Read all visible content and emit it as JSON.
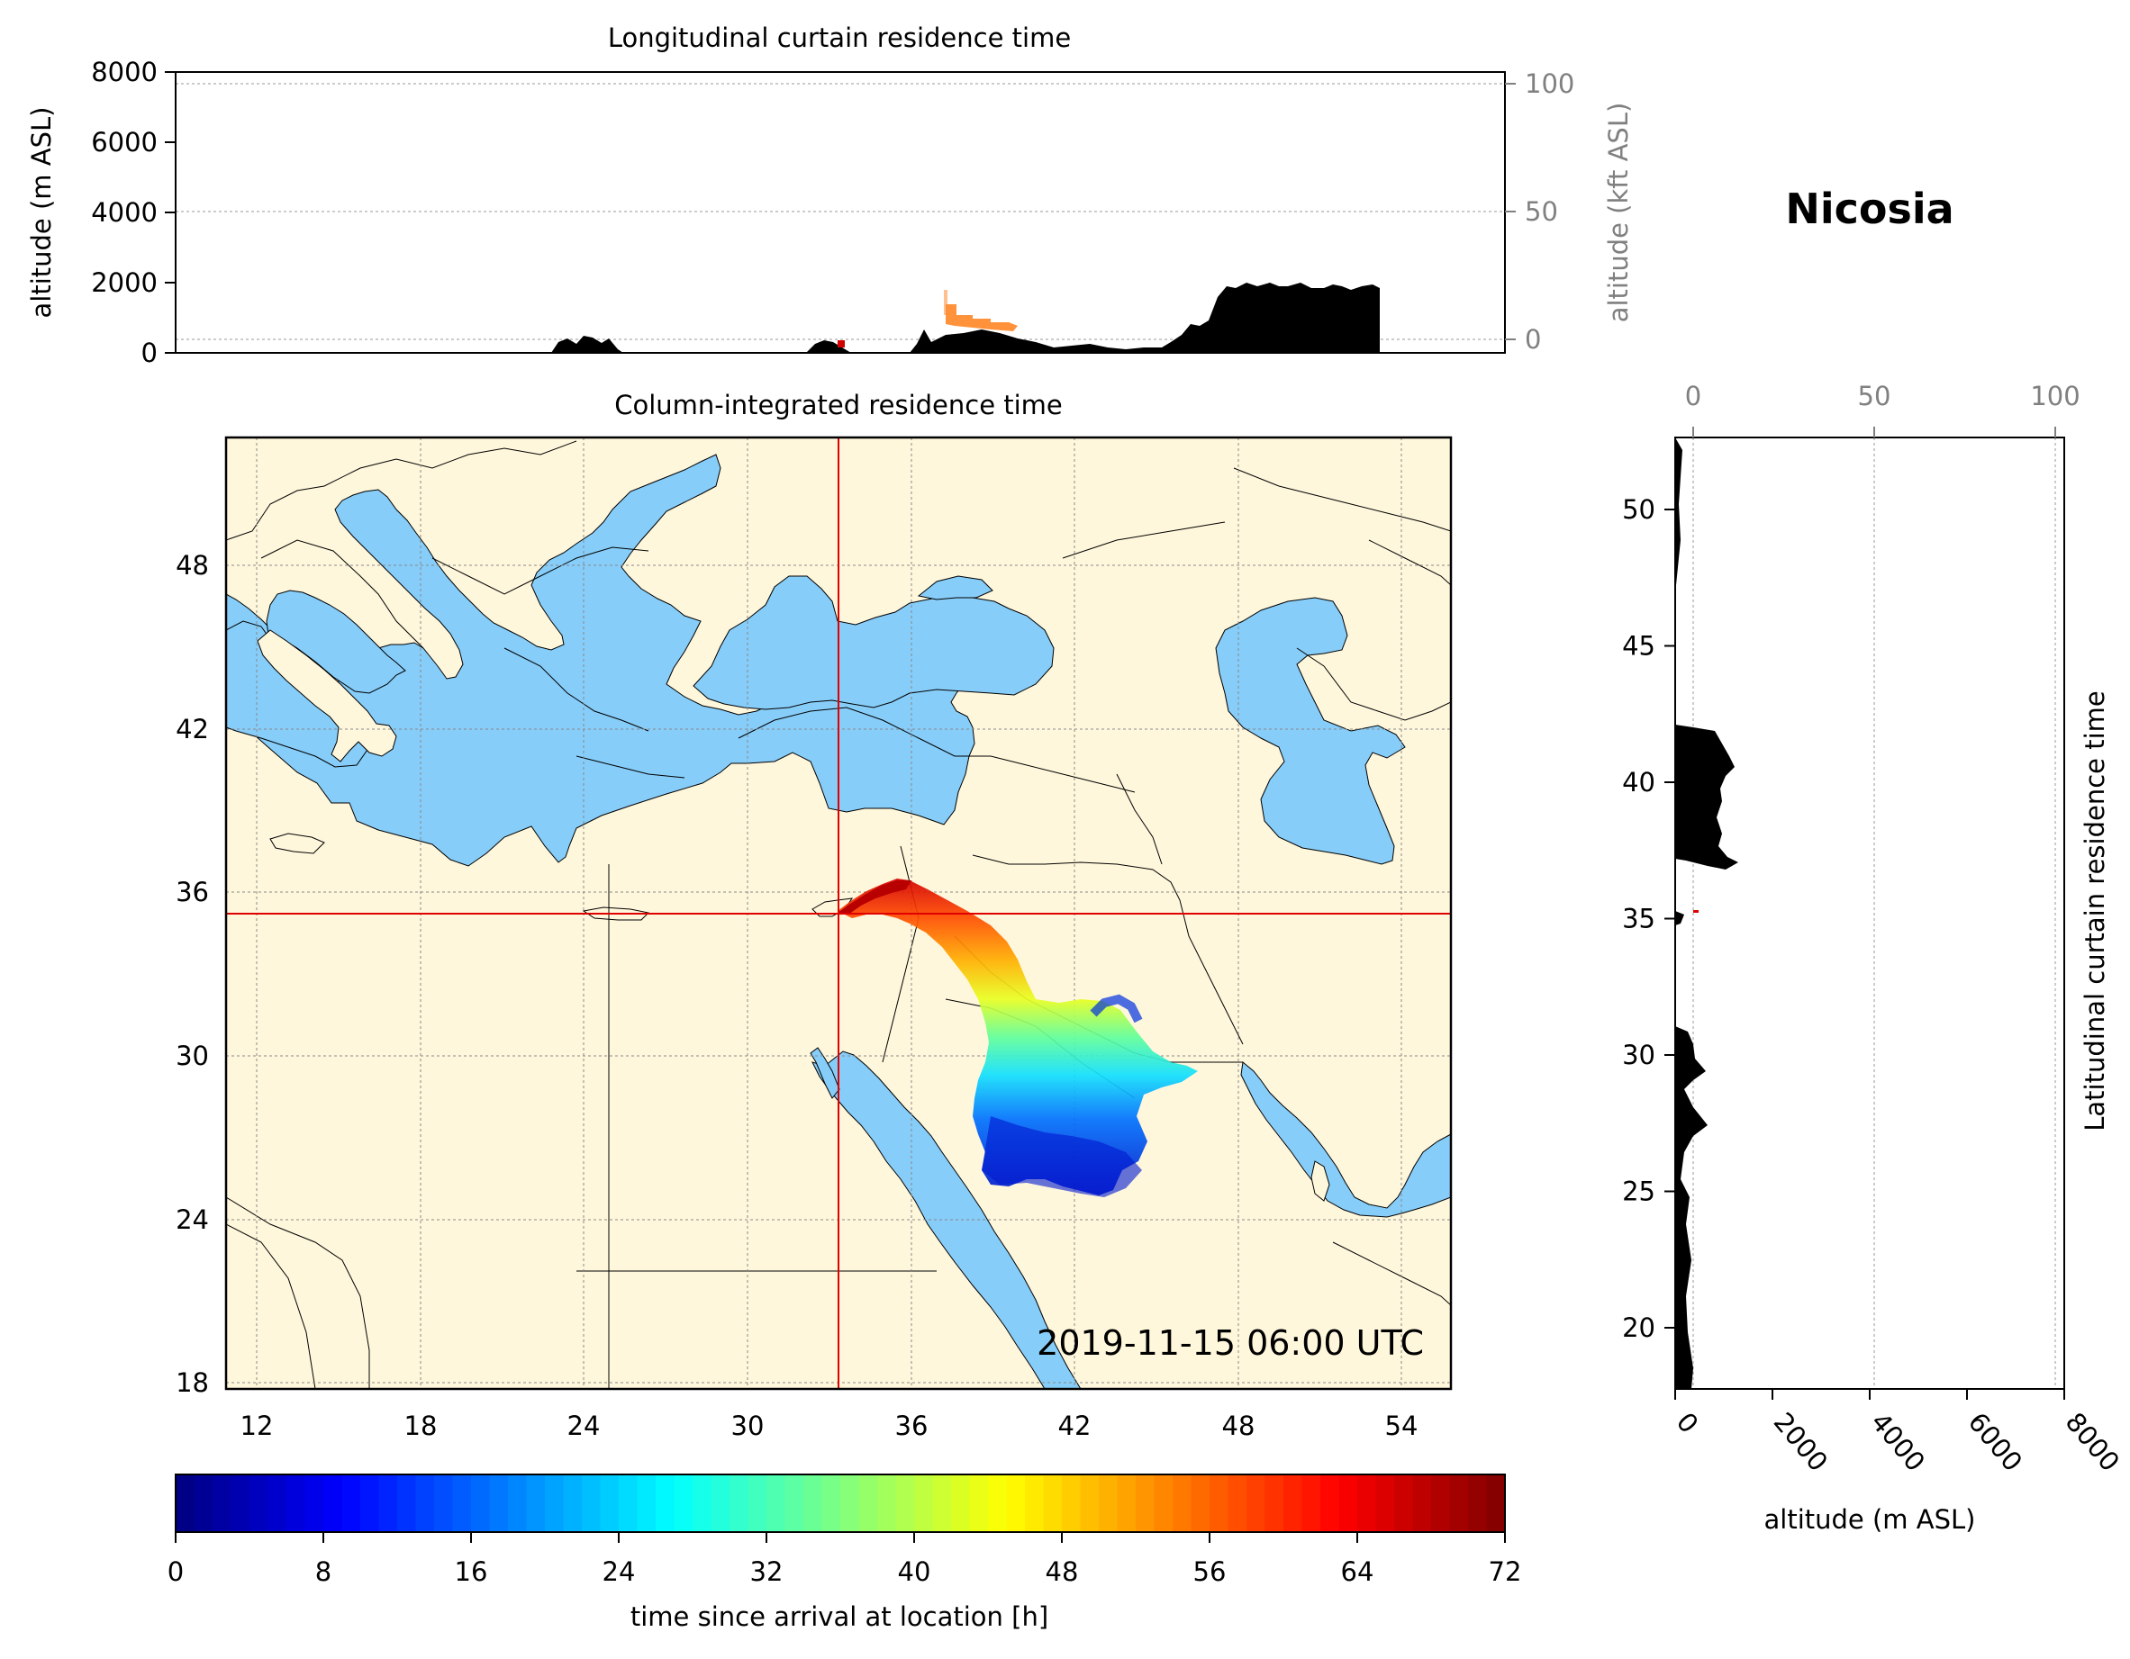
{
  "station": {
    "name": "Nicosia"
  },
  "timestamp": "2019-11-15 06:00 UTC",
  "colors": {
    "land": "#fff7dc",
    "water": "#87cdf9",
    "crosshair": "#e00000",
    "terrain": "#000000"
  },
  "longitudinal_panel": {
    "title": "Longitudinal curtain residence time",
    "ylabel_left": "altitude (m ASL)",
    "ylabel_right": "altitude (kft ASL)",
    "left_ticks": [
      "0",
      "2000",
      "4000",
      "6000",
      "8000"
    ],
    "right_ticks": [
      "0",
      "50",
      "100"
    ]
  },
  "map_panel": {
    "title": "Column-integrated residence time",
    "lon_ticks": [
      "12",
      "18",
      "24",
      "30",
      "36",
      "42",
      "48",
      "54"
    ],
    "lat_ticks": [
      "18",
      "24",
      "30",
      "36",
      "42",
      "48"
    ]
  },
  "latitudinal_panel": {
    "ylabel": "Latitudinal curtain residence time",
    "xlabel": "altitude (m ASL)",
    "top_ticks": [
      "0",
      "50",
      "100"
    ],
    "bottom_ticks": [
      "0",
      "2000",
      "4000",
      "6000",
      "8000"
    ],
    "lat_ticks": [
      "20",
      "25",
      "30",
      "35",
      "40",
      "45",
      "50"
    ]
  },
  "colorbar": {
    "label": "time since arrival at location [h]",
    "ticks": [
      "0",
      "8",
      "16",
      "24",
      "32",
      "40",
      "48",
      "56",
      "64",
      "72"
    ]
  },
  "chart_data": {
    "type": "heatmap",
    "station_lon": 33.4,
    "station_lat": 35.2,
    "map_extent": {
      "lon": [
        10.9,
        55.9
      ],
      "lat": [
        17.9,
        52.7
      ]
    },
    "colorbar_range": [
      0,
      72
    ],
    "longitudinal_altitude_range": [
      0,
      8000
    ],
    "latitudinal_altitude_range": [
      0,
      8000
    ]
  }
}
